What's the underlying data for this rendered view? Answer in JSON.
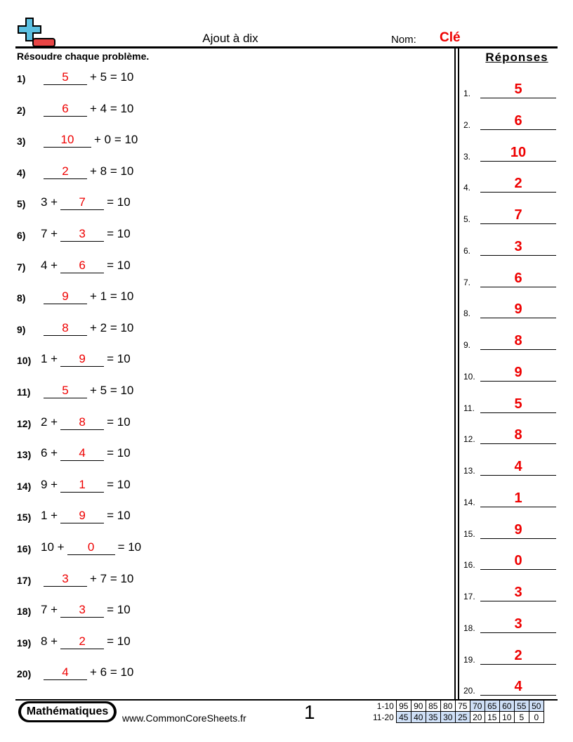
{
  "header": {
    "title": "Ajout à dix",
    "name_label": "Nom:",
    "name_value": "Clé",
    "logo": "plus-minus-logo",
    "logo_colors": {
      "plus": "#5bbfe0",
      "minus": "#e84545"
    }
  },
  "instructions": "Résoudre chaque problème.",
  "answers_title": "Réponses",
  "accent_color": "#ee0000",
  "problems": [
    {
      "num": "1)",
      "left": "",
      "right": "+ 5 = 10",
      "answer": "5"
    },
    {
      "num": "2)",
      "left": "",
      "right": "+ 4 = 10",
      "answer": "6"
    },
    {
      "num": "3)",
      "left": "",
      "right": "+ 0 = 10",
      "answer": "10"
    },
    {
      "num": "4)",
      "left": "",
      "right": "+ 8 = 10",
      "answer": "2"
    },
    {
      "num": "5)",
      "left": "3 +",
      "right": "= 10",
      "answer": "7"
    },
    {
      "num": "6)",
      "left": "7 +",
      "right": "= 10",
      "answer": "3"
    },
    {
      "num": "7)",
      "left": "4 +",
      "right": "= 10",
      "answer": "6"
    },
    {
      "num": "8)",
      "left": "",
      "right": "+ 1 = 10",
      "answer": "9"
    },
    {
      "num": "9)",
      "left": "",
      "right": "+ 2 = 10",
      "answer": "8"
    },
    {
      "num": "10)",
      "left": "1 +",
      "right": "= 10",
      "answer": "9"
    },
    {
      "num": "11)",
      "left": "",
      "right": "+ 5 = 10",
      "answer": "5"
    },
    {
      "num": "12)",
      "left": "2 +",
      "right": "= 10",
      "answer": "8"
    },
    {
      "num": "13)",
      "left": "6 +",
      "right": "= 10",
      "answer": "4"
    },
    {
      "num": "14)",
      "left": "9 +",
      "right": "= 10",
      "answer": "1"
    },
    {
      "num": "15)",
      "left": "1 +",
      "right": "= 10",
      "answer": "9"
    },
    {
      "num": "16)",
      "left": "10 +",
      "right": "= 10",
      "answer": "0"
    },
    {
      "num": "17)",
      "left": "",
      "right": "+ 7 = 10",
      "answer": "3"
    },
    {
      "num": "18)",
      "left": "7 +",
      "right": "= 10",
      "answer": "3"
    },
    {
      "num": "19)",
      "left": "8 +",
      "right": "= 10",
      "answer": "2"
    },
    {
      "num": "20)",
      "left": "",
      "right": "+ 6 = 10",
      "answer": "4"
    }
  ],
  "answer_key": [
    {
      "num": "1.",
      "value": "5"
    },
    {
      "num": "2.",
      "value": "6"
    },
    {
      "num": "3.",
      "value": "10"
    },
    {
      "num": "4.",
      "value": "2"
    },
    {
      "num": "5.",
      "value": "7"
    },
    {
      "num": "6.",
      "value": "3"
    },
    {
      "num": "7.",
      "value": "6"
    },
    {
      "num": "8.",
      "value": "9"
    },
    {
      "num": "9.",
      "value": "8"
    },
    {
      "num": "10.",
      "value": "9"
    },
    {
      "num": "11.",
      "value": "5"
    },
    {
      "num": "12.",
      "value": "8"
    },
    {
      "num": "13.",
      "value": "4"
    },
    {
      "num": "14.",
      "value": "1"
    },
    {
      "num": "15.",
      "value": "9"
    },
    {
      "num": "16.",
      "value": "0"
    },
    {
      "num": "17.",
      "value": "3"
    },
    {
      "num": "18.",
      "value": "3"
    },
    {
      "num": "19.",
      "value": "2"
    },
    {
      "num": "20.",
      "value": "4"
    }
  ],
  "footer": {
    "brand": "Mathématiques",
    "site": "www.CommonCoreSheets.fr",
    "page": "1",
    "score_rows": [
      {
        "label": "1-10",
        "scores": [
          "95",
          "90",
          "85",
          "80",
          "75",
          "70",
          "65",
          "60",
          "55",
          "50"
        ],
        "highlight": [
          false,
          false,
          false,
          false,
          false,
          true,
          true,
          true,
          true,
          true
        ]
      },
      {
        "label": "11-20",
        "scores": [
          "45",
          "40",
          "35",
          "30",
          "25",
          "20",
          "15",
          "10",
          "5",
          "0"
        ],
        "highlight": [
          true,
          true,
          true,
          true,
          true,
          false,
          false,
          false,
          false,
          false
        ]
      }
    ],
    "highlight_color": "#cfe0f7"
  }
}
